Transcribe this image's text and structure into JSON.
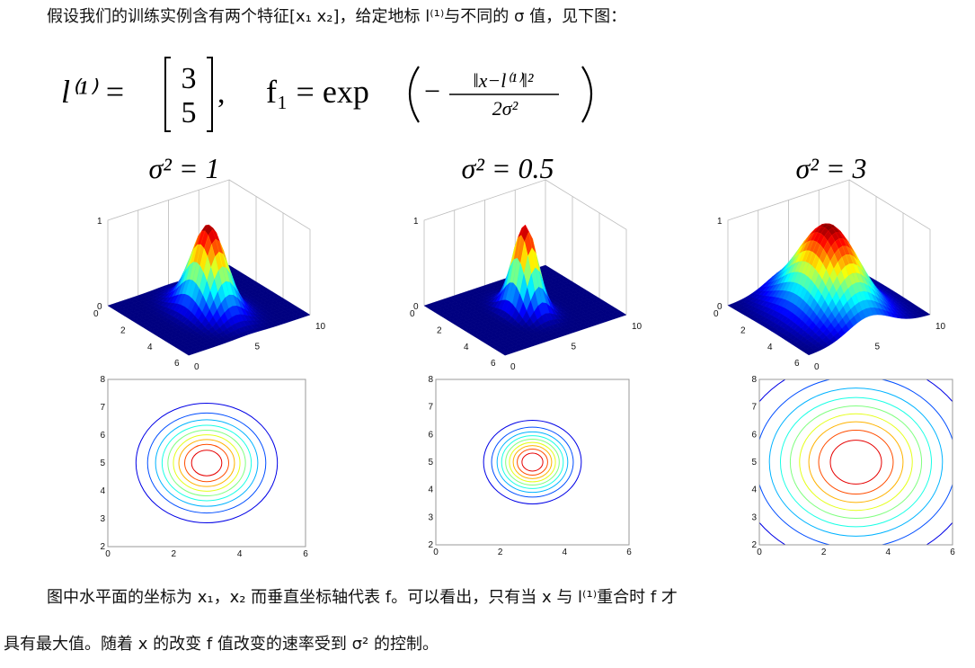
{
  "intro": "假设我们的训练实例含有两个特征[x₁ x₂]，给定地标 l⁽¹⁾与不同的 σ 值，见下图：",
  "formula": {
    "landmark": "l⁽¹⁾ =",
    "matrix": [
      "3",
      "5"
    ],
    "comma": ",",
    "f": "f₁ = exp",
    "minus": "−",
    "numerator": "‖x−l⁽¹⁾‖²",
    "denominator": "2σ²"
  },
  "panels": [
    {
      "title": "σ² = 1",
      "surface": {
        "z_ticks": [
          1,
          0
        ],
        "x_ticks": [
          0,
          2,
          4,
          6
        ],
        "y_ticks": [
          0,
          5,
          10
        ]
      },
      "contour": {
        "y_ticks": [
          2,
          3,
          4,
          5,
          6,
          7,
          8
        ],
        "x_ticks": [
          0,
          2,
          4,
          6
        ]
      }
    },
    {
      "title": "σ² = 0.5",
      "surface": {
        "z_ticks": [
          1,
          0
        ],
        "x_ticks": [
          0,
          2,
          4,
          6
        ],
        "y_ticks": [
          0,
          5,
          10
        ]
      },
      "contour": {
        "y_ticks": [
          2,
          3,
          4,
          5,
          6,
          7,
          8
        ],
        "x_ticks": [
          0,
          2,
          4,
          6
        ]
      }
    },
    {
      "title": "σ² = 3",
      "surface": {
        "z_ticks": [
          1,
          0
        ],
        "x_ticks": [
          0,
          2,
          4,
          6
        ],
        "y_ticks": [
          0,
          5,
          10
        ]
      },
      "contour": {
        "y_ticks": [
          2,
          3,
          4,
          5,
          6,
          7,
          8
        ],
        "x_ticks": [
          0,
          2,
          4,
          6
        ]
      }
    }
  ],
  "paragraph": [
    "图中水平面的坐标为 x₁，x₂ 而垂直坐标轴代表 f。可以看出，只有当 x 与 l⁽¹⁾重合时 f 才",
    "具有最大值。随着 x 的改变 f 值改变的速率受到 σ² 的控制。"
  ]
}
